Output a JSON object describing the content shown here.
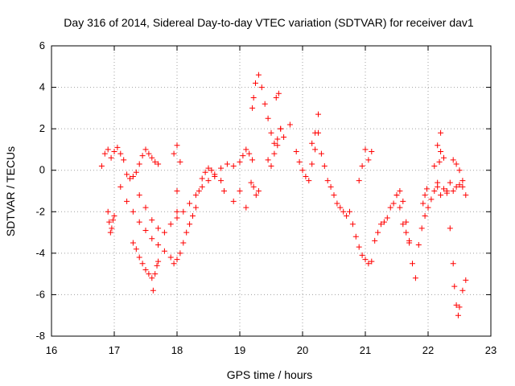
{
  "chart_data": {
    "type": "scatter",
    "title": "Day 316 of 2014, Sidereal Day-to-day VTEC variation (SDTVAR) for receiver dav1",
    "xlabel": "GPS time / hours",
    "ylabel": "SDTVAR / TECUs",
    "xlim": [
      16,
      23
    ],
    "ylim": [
      -8,
      6
    ],
    "xticks": [
      16,
      17,
      18,
      19,
      20,
      21,
      22,
      23
    ],
    "yticks": [
      -8,
      -6,
      -4,
      -2,
      0,
      2,
      4,
      6
    ],
    "grid": true,
    "marker": "+",
    "color": "#ff0000",
    "series": [
      {
        "name": "dav1",
        "x": [
          16.8,
          16.85,
          16.9,
          16.95,
          17.0,
          17.05,
          17.1,
          17.15,
          17.2,
          17.25,
          17.3,
          17.35,
          17.4,
          17.45,
          17.5,
          17.55,
          17.6,
          17.65,
          17.7,
          16.9,
          16.92,
          16.94,
          16.96,
          16.98,
          17.0,
          17.1,
          17.2,
          17.3,
          17.4,
          17.5,
          17.6,
          17.7,
          17.8,
          17.9,
          17.95,
          18.0,
          18.05,
          18.1,
          18.15,
          18.2,
          18.25,
          18.3,
          18.35,
          18.4,
          18.45,
          18.5,
          18.55,
          18.6,
          18.7,
          18.8,
          18.9,
          19.0,
          19.05,
          19.1,
          19.15,
          19.2,
          17.3,
          17.35,
          17.4,
          17.45,
          17.5,
          17.55,
          17.6,
          17.62,
          17.65,
          17.68,
          17.7,
          17.4,
          17.5,
          17.6,
          17.7,
          17.8,
          17.9,
          18.0,
          18.1,
          18.2,
          18.3,
          18.4,
          18.5,
          18.6,
          18.0,
          17.95,
          18.0,
          18.05,
          18.0,
          18.7,
          18.75,
          18.9,
          19.0,
          19.1,
          19.2,
          19.22,
          19.25,
          19.3,
          19.35,
          19.4,
          19.45,
          19.5,
          19.55,
          19.6,
          19.65,
          19.7,
          19.8,
          19.18,
          19.22,
          19.26,
          19.3,
          19.45,
          19.5,
          19.55,
          19.6,
          19.65,
          19.62,
          19.58,
          19.9,
          19.95,
          20.0,
          20.05,
          20.1,
          20.15,
          20.2,
          20.25,
          20.3,
          20.35,
          20.4,
          20.45,
          20.5,
          20.55,
          20.6,
          20.65,
          20.7,
          20.75,
          20.8,
          20.85,
          20.9,
          20.95,
          21.0,
          21.05,
          21.1,
          20.25,
          20.2,
          20.15,
          20.9,
          20.95,
          21.0,
          21.05,
          21.1,
          21.15,
          21.2,
          21.25,
          21.3,
          21.35,
          21.4,
          21.45,
          21.5,
          21.55,
          21.6,
          21.65,
          21.7,
          21.75,
          21.8,
          21.85,
          21.9,
          21.95,
          22.0,
          22.05,
          22.1,
          22.15,
          22.2,
          22.25,
          22.3,
          22.35,
          22.4,
          22.45,
          22.5,
          22.55,
          21.95,
          21.92,
          21.98,
          21.5,
          21.55,
          21.6,
          21.65,
          21.7,
          22.1,
          22.15,
          22.2,
          22.25,
          22.3,
          22.35,
          22.4,
          22.42,
          22.45,
          22.48,
          22.5,
          22.55,
          22.6,
          22.15,
          22.18,
          22.2,
          22.4,
          22.45,
          22.5,
          22.55,
          22.6
        ],
        "y": [
          0.2,
          0.8,
          1.0,
          0.6,
          0.9,
          1.1,
          0.8,
          0.5,
          -0.2,
          -0.4,
          -0.3,
          -0.1,
          0.3,
          0.7,
          1.0,
          0.8,
          0.6,
          0.4,
          0.3,
          -2.0,
          -2.5,
          -3.0,
          -2.8,
          -2.4,
          -2.2,
          -0.8,
          -1.5,
          -2.0,
          -2.5,
          -2.9,
          -3.3,
          -3.6,
          -3.9,
          -4.2,
          -4.5,
          -4.3,
          -4.0,
          -3.5,
          -3.0,
          -2.6,
          -2.2,
          -1.8,
          -1.0,
          -0.4,
          -0.1,
          0.1,
          0.0,
          -0.2,
          0.1,
          0.3,
          0.2,
          0.4,
          0.7,
          1.0,
          0.8,
          0.5,
          -3.5,
          -3.8,
          -4.2,
          -4.5,
          -4.8,
          -5.0,
          -5.2,
          -5.8,
          -5.0,
          -4.6,
          -4.4,
          -1.2,
          -1.8,
          -2.4,
          -2.8,
          -3.0,
          -2.6,
          -2.3,
          -2.0,
          -1.6,
          -1.2,
          -0.8,
          -0.5,
          -0.3,
          -2.0,
          0.8,
          1.2,
          0.4,
          -1.0,
          -0.5,
          -1.0,
          -1.5,
          -1.0,
          -1.8,
          3.0,
          3.5,
          4.2,
          4.6,
          4.0,
          3.2,
          2.5,
          1.8,
          1.3,
          1.5,
          2.0,
          1.6,
          2.2,
          -0.6,
          -0.8,
          -1.2,
          -1.0,
          0.5,
          0.2,
          0.8,
          1.2,
          2.0,
          3.7,
          3.5,
          0.9,
          0.4,
          0.0,
          -0.3,
          -0.5,
          0.3,
          1.0,
          1.8,
          0.8,
          0.2,
          -0.5,
          -0.8,
          -1.2,
          -1.6,
          -1.8,
          -2.0,
          -2.2,
          -2.0,
          -2.6,
          -3.2,
          -3.7,
          -4.1,
          -4.3,
          -4.5,
          -4.4,
          2.7,
          1.8,
          1.3,
          -0.5,
          0.2,
          1.0,
          0.5,
          0.9,
          -3.4,
          -3.0,
          -2.6,
          -2.5,
          -2.3,
          -1.8,
          -1.6,
          -1.2,
          -1.0,
          -1.5,
          -2.5,
          -3.5,
          -4.5,
          -5.2,
          -3.6,
          -2.8,
          -2.2,
          -1.8,
          -1.4,
          -1.0,
          -0.8,
          -1.2,
          -0.9,
          -1.1,
          -0.6,
          -1.0,
          -0.8,
          -0.7,
          -0.5,
          -1.2,
          -1.6,
          -0.9,
          -1.2,
          -1.8,
          -2.6,
          -3.0,
          -3.4,
          0.2,
          1.2,
          1.8,
          0.6,
          -1.0,
          -2.8,
          -4.5,
          -5.6,
          -6.5,
          -7.0,
          -6.6,
          -5.8,
          -5.3,
          -0.6,
          0.4,
          0.9,
          0.5,
          0.3,
          0.0,
          -0.8,
          -1.2
        ]
      }
    ]
  }
}
